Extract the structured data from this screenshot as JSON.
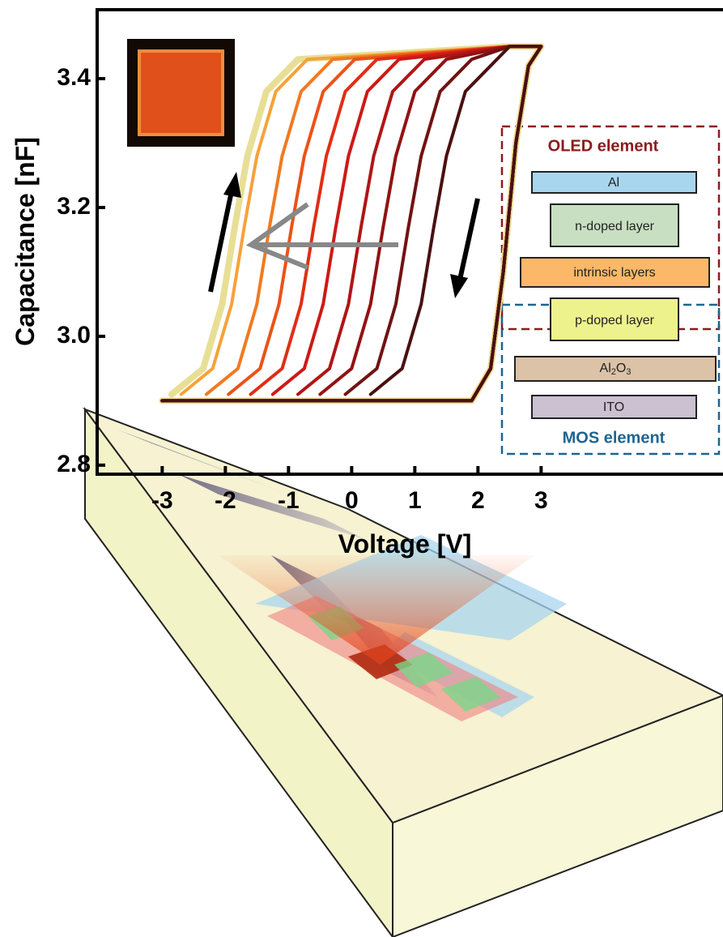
{
  "chart_data": {
    "type": "line",
    "x_label": "Voltage [V]",
    "y_label": "Capacitance [nF]",
    "xlim": [
      -4.03,
      5.88
    ],
    "ylim": [
      2.786,
      3.507
    ],
    "xticks": [
      -3,
      -2,
      -1,
      0,
      1,
      2,
      3
    ],
    "yticks": [
      2.8,
      {
        "value": 3,
        "label": "3.0"
      },
      3.2,
      3.4
    ],
    "series": [
      {
        "color": "#e8df96",
        "x": [
          -3,
          1.9,
          2.2,
          2.4,
          2.6,
          2.8,
          3,
          2.5,
          -0.85,
          -1.35,
          -1.65,
          -1.85,
          -2.05,
          -2.35,
          -2.85
        ],
        "values": [
          2.9,
          2.9,
          2.95,
          3.1,
          3.3,
          3.42,
          3.45,
          3.45,
          3.43,
          3.38,
          3.28,
          3.17,
          3.05,
          2.95,
          2.91
        ]
      },
      {
        "color": "#f5a23a",
        "x": [
          -3,
          1.9,
          2.2,
          2.4,
          2.6,
          2.8,
          3,
          2.5,
          -0.7,
          -1.2,
          -1.5,
          -1.7,
          -1.9,
          -2.2,
          -2.7
        ],
        "values": [
          2.9,
          2.9,
          2.95,
          3.1,
          3.3,
          3.42,
          3.45,
          3.45,
          3.43,
          3.38,
          3.28,
          3.17,
          3.05,
          2.95,
          2.91
        ]
      },
      {
        "color": "#f07a22",
        "x": [
          -3,
          1.9,
          2.2,
          2.4,
          2.6,
          2.8,
          3,
          2.5,
          -0.3,
          -0.8,
          -1.1,
          -1.3,
          -1.5,
          -1.8,
          -2.3
        ],
        "values": [
          2.9,
          2.9,
          2.95,
          3.1,
          3.3,
          3.42,
          3.45,
          3.45,
          3.43,
          3.38,
          3.28,
          3.17,
          3.05,
          2.95,
          2.91
        ]
      },
      {
        "color": "#ea5318",
        "x": [
          -3,
          1.9,
          2.2,
          2.4,
          2.6,
          2.8,
          3,
          2.5,
          0.05,
          -0.45,
          -0.75,
          -0.95,
          -1.15,
          -1.45,
          -1.95
        ],
        "values": [
          2.9,
          2.9,
          2.95,
          3.1,
          3.3,
          3.42,
          3.45,
          3.45,
          3.43,
          3.38,
          3.28,
          3.17,
          3.05,
          2.95,
          2.91
        ]
      },
      {
        "color": "#e02e14",
        "x": [
          -3,
          1.9,
          2.2,
          2.4,
          2.6,
          2.8,
          3,
          2.5,
          0.4,
          -0.1,
          -0.4,
          -0.6,
          -0.8,
          -1.1,
          -1.6
        ],
        "values": [
          2.9,
          2.9,
          2.95,
          3.1,
          3.3,
          3.42,
          3.45,
          3.45,
          3.43,
          3.38,
          3.28,
          3.17,
          3.05,
          2.95,
          2.91
        ]
      },
      {
        "color": "#cc1a18",
        "x": [
          -3,
          1.9,
          2.2,
          2.4,
          2.6,
          2.8,
          3,
          2.5,
          0.75,
          0.25,
          -0.05,
          -0.25,
          -0.45,
          -0.75,
          -1.25
        ],
        "values": [
          2.9,
          2.9,
          2.95,
          3.1,
          3.3,
          3.42,
          3.45,
          3.45,
          3.43,
          3.38,
          3.28,
          3.17,
          3.05,
          2.95,
          2.91
        ]
      },
      {
        "color": "#b01515",
        "x": [
          -3,
          1.9,
          2.2,
          2.4,
          2.6,
          2.8,
          3,
          2.5,
          1.15,
          0.65,
          0.35,
          0.15,
          -0.05,
          -0.35,
          -0.85
        ],
        "values": [
          2.9,
          2.9,
          2.95,
          3.1,
          3.3,
          3.42,
          3.45,
          3.45,
          3.43,
          3.38,
          3.28,
          3.17,
          3.05,
          2.95,
          2.91
        ]
      },
      {
        "color": "#921212",
        "x": [
          -3,
          1.9,
          2.2,
          2.4,
          2.6,
          2.8,
          3,
          2.5,
          1.5,
          1,
          0.7,
          0.5,
          0.3,
          0,
          -0.5
        ],
        "values": [
          2.9,
          2.9,
          2.95,
          3.1,
          3.3,
          3.42,
          3.45,
          3.45,
          3.43,
          3.38,
          3.28,
          3.17,
          3.05,
          2.95,
          2.91
        ]
      },
      {
        "color": "#711212",
        "x": [
          -3,
          1.9,
          2.2,
          2.4,
          2.6,
          2.8,
          3,
          2.5,
          1.9,
          1.4,
          1.1,
          0.9,
          0.7,
          0.4,
          -0.1
        ],
        "values": [
          2.9,
          2.9,
          2.95,
          3.1,
          3.3,
          3.42,
          3.45,
          3.45,
          3.43,
          3.38,
          3.28,
          3.17,
          3.05,
          2.95,
          2.91
        ]
      },
      {
        "color": "#4a1010",
        "x": [
          -3,
          1.9,
          2.2,
          2.4,
          2.6,
          2.8,
          3,
          2.5,
          2.3,
          1.8,
          1.5,
          1.3,
          1.1,
          0.8,
          0.3
        ],
        "values": [
          2.9,
          2.9,
          2.95,
          3.1,
          3.3,
          3.42,
          3.45,
          3.45,
          3.43,
          3.38,
          3.28,
          3.17,
          3.05,
          2.95,
          2.91
        ]
      }
    ],
    "stack": {
      "oled_title": "OLED element",
      "layers": [
        "Al",
        "n-doped layer",
        "intrinsic layers",
        "p-doped layer"
      ],
      "oxide": [
        "Al",
        "2",
        "O",
        "3"
      ],
      "ito": "ITO",
      "mos_title": "MOS element"
    }
  }
}
